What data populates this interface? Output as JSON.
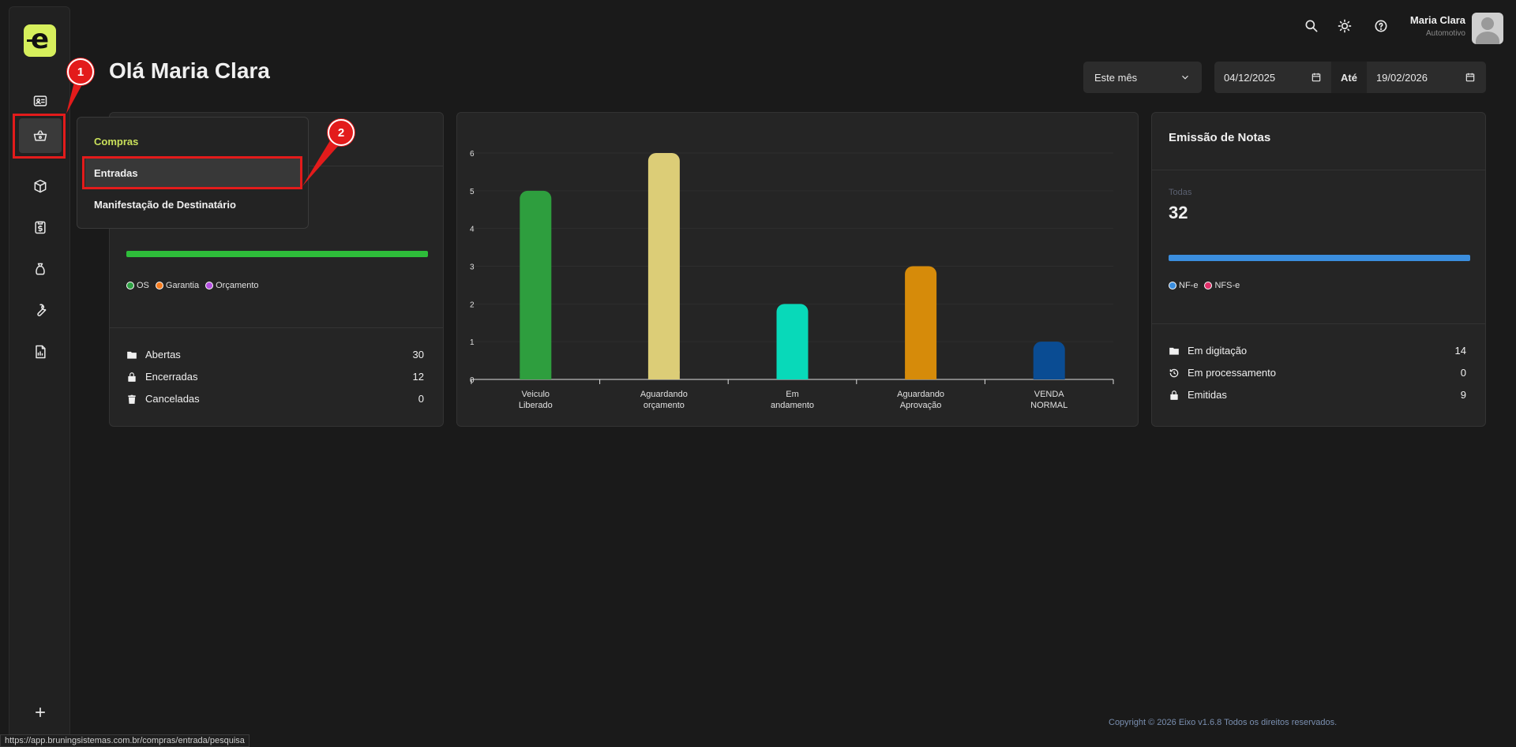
{
  "header": {
    "greeting": "Olá Maria Clara",
    "user_name": "Maria Clara",
    "user_role": "Automotivo"
  },
  "topbar_icons": [
    "search-icon",
    "sun-icon",
    "help-icon"
  ],
  "filters": {
    "period": "Este mês",
    "date_from": "04/12/2025",
    "date_separator": "Até",
    "date_to": "19/02/2026"
  },
  "sidebar": {
    "items": [
      {
        "name": "id-card-icon"
      },
      {
        "name": "basket-icon",
        "active": true
      },
      {
        "name": "box-icon"
      },
      {
        "name": "clipboard-dollar-icon"
      },
      {
        "name": "money-bag-icon"
      },
      {
        "name": "wrench-icon"
      },
      {
        "name": "report-icon"
      }
    ],
    "add_icon": "plus-icon"
  },
  "dropdown": {
    "header": "Compras",
    "items": [
      "Entradas",
      "Manifestação de Destinatário"
    ]
  },
  "os_card": {
    "legend": [
      "OS",
      "Garantia",
      "Orçamento"
    ],
    "legend_colors": [
      "#2ea043",
      "#f57c1f",
      "#b44fe0"
    ],
    "bar_color": "#2ebd3a",
    "stats": [
      {
        "label": "Abertas",
        "value": "30",
        "icon": "folder-icon"
      },
      {
        "label": "Encerradas",
        "value": "12",
        "icon": "lock-icon"
      },
      {
        "label": "Canceladas",
        "value": "0",
        "icon": "trash-icon"
      }
    ]
  },
  "notas_card": {
    "title": "Emissão de Notas",
    "small_label": "Todas",
    "total": "32",
    "bar_color": "#3b8ede",
    "legend": [
      "NF-e",
      "NFS-e"
    ],
    "legend_colors": [
      "#3b8ede",
      "#e0306a"
    ],
    "stats": [
      {
        "label": "Em digitação",
        "value": "14",
        "icon": "folder-icon"
      },
      {
        "label": "Em processamento",
        "value": "0",
        "icon": "history-icon"
      },
      {
        "label": "Emitidas",
        "value": "9",
        "icon": "lock-icon"
      }
    ]
  },
  "chart_data": {
    "type": "bar",
    "categories": [
      [
        "Veiculo",
        "Liberado"
      ],
      [
        "Aguardando",
        "orçamento"
      ],
      [
        "Em",
        "andamento"
      ],
      [
        "Aguardando",
        "Aprovação"
      ],
      [
        "VENDA",
        "NORMAL"
      ]
    ],
    "values": [
      5,
      6,
      2,
      3,
      1
    ],
    "colors": [
      "#2e9e3e",
      "#dccd77",
      "#08d9b9",
      "#d68b0a",
      "#0a4c93"
    ],
    "yticks": [
      0,
      1,
      2,
      3,
      4,
      5,
      6
    ],
    "ylim": [
      0,
      6
    ]
  },
  "annotations": {
    "badge1": "1",
    "badge2": "2"
  },
  "footer": {
    "copyright": "Copyright © 2026 Eixo v1.6.8 Todos os direitos reservados.",
    "status_url": "https://app.bruningsistemas.com.br/compras/entrada/pesquisa"
  }
}
